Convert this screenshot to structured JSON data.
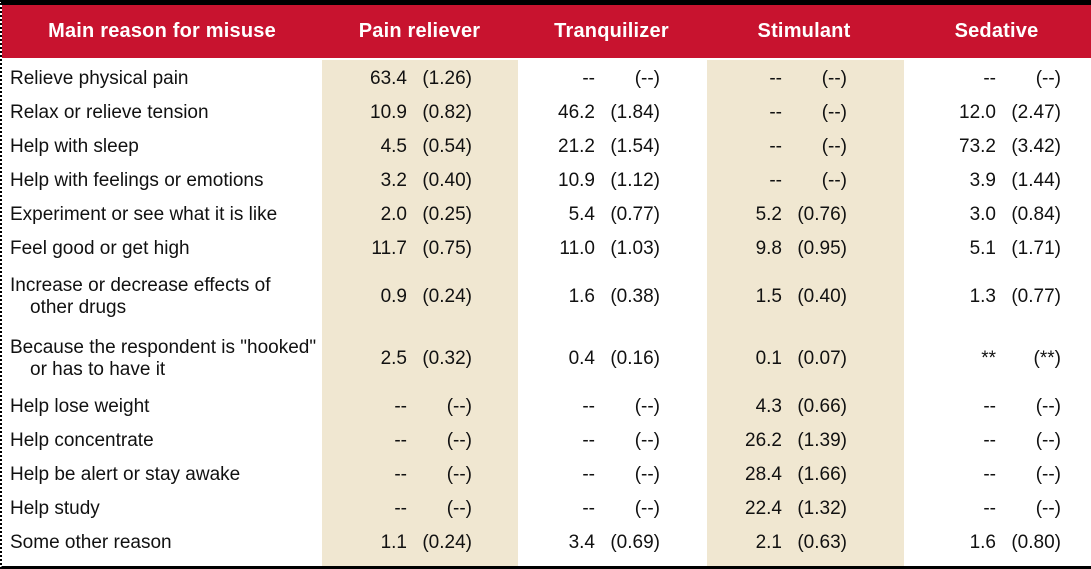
{
  "colors": {
    "header_bg": "#C8132F",
    "header_text": "#FFFFFF",
    "band_bg": "#F0E7D1",
    "body_text": "#111111",
    "border": "#000000"
  },
  "table": {
    "header": {
      "reason_label": "Main reason for misuse",
      "col_pain": "Pain reliever",
      "col_tranq": "Tranquilizer",
      "col_stim": "Stimulant",
      "col_sed": "Sedative"
    },
    "rows": [
      {
        "reason": "Relieve physical pain",
        "cells": [
          {
            "est": "63.4",
            "se": "(1.26)"
          },
          {
            "est": "--",
            "se": "(--)"
          },
          {
            "est": "--",
            "se": "(--)"
          },
          {
            "est": "--",
            "se": "(--)"
          }
        ]
      },
      {
        "reason": "Relax or relieve tension",
        "cells": [
          {
            "est": "10.9",
            "se": "(0.82)"
          },
          {
            "est": "46.2",
            "se": "(1.84)"
          },
          {
            "est": "--",
            "se": "(--)"
          },
          {
            "est": "12.0",
            "se": "(2.47)"
          }
        ]
      },
      {
        "reason": "Help with sleep",
        "cells": [
          {
            "est": "4.5",
            "se": "(0.54)"
          },
          {
            "est": "21.2",
            "se": "(1.54)"
          },
          {
            "est": "--",
            "se": "(--)"
          },
          {
            "est": "73.2",
            "se": "(3.42)"
          }
        ]
      },
      {
        "reason": "Help with feelings or emotions",
        "cells": [
          {
            "est": "3.2",
            "se": "(0.40)"
          },
          {
            "est": "10.9",
            "se": "(1.12)"
          },
          {
            "est": "--",
            "se": "(--)"
          },
          {
            "est": "3.9",
            "se": "(1.44)"
          }
        ]
      },
      {
        "reason": "Experiment or see what it is like",
        "cells": [
          {
            "est": "2.0",
            "se": "(0.25)"
          },
          {
            "est": "5.4",
            "se": "(0.77)"
          },
          {
            "est": "5.2",
            "se": "(0.76)"
          },
          {
            "est": "3.0",
            "se": "(0.84)"
          }
        ]
      },
      {
        "reason": "Feel good or get high",
        "cells": [
          {
            "est": "11.7",
            "se": "(0.75)"
          },
          {
            "est": "11.0",
            "se": "(1.03)"
          },
          {
            "est": "9.8",
            "se": "(0.95)"
          },
          {
            "est": "5.1",
            "se": "(1.71)"
          }
        ]
      },
      {
        "reason": "Increase or decrease effects of other drugs",
        "cells": [
          {
            "est": "0.9",
            "se": "(0.24)"
          },
          {
            "est": "1.6",
            "se": "(0.38)"
          },
          {
            "est": "1.5",
            "se": "(0.40)"
          },
          {
            "est": "1.3",
            "se": "(0.77)"
          }
        ]
      },
      {
        "reason": "Because the respondent is \"hooked\" or has to have it",
        "cells": [
          {
            "est": "2.5",
            "se": "(0.32)"
          },
          {
            "est": "0.4",
            "se": "(0.16)"
          },
          {
            "est": "0.1",
            "se": "(0.07)"
          },
          {
            "est": "**",
            "se": "(**)"
          }
        ]
      },
      {
        "reason": "Help lose weight",
        "cells": [
          {
            "est": "--",
            "se": "(--)"
          },
          {
            "est": "--",
            "se": "(--)"
          },
          {
            "est": "4.3",
            "se": "(0.66)"
          },
          {
            "est": "--",
            "se": "(--)"
          }
        ]
      },
      {
        "reason": "Help concentrate",
        "cells": [
          {
            "est": "--",
            "se": "(--)"
          },
          {
            "est": "--",
            "se": "(--)"
          },
          {
            "est": "26.2",
            "se": "(1.39)"
          },
          {
            "est": "--",
            "se": "(--)"
          }
        ]
      },
      {
        "reason": "Help be alert or stay awake",
        "cells": [
          {
            "est": "--",
            "se": "(--)"
          },
          {
            "est": "--",
            "se": "(--)"
          },
          {
            "est": "28.4",
            "se": "(1.66)"
          },
          {
            "est": "--",
            "se": "(--)"
          }
        ]
      },
      {
        "reason": "Help study",
        "cells": [
          {
            "est": "--",
            "se": "(--)"
          },
          {
            "est": "--",
            "se": "(--)"
          },
          {
            "est": "22.4",
            "se": "(1.32)"
          },
          {
            "est": "--",
            "se": "(--)"
          }
        ]
      },
      {
        "reason": "Some other reason",
        "cells": [
          {
            "est": "1.1",
            "se": "(0.24)"
          },
          {
            "est": "3.4",
            "se": "(0.69)"
          },
          {
            "est": "2.1",
            "se": "(0.63)"
          },
          {
            "est": "1.6",
            "se": "(0.80)"
          }
        ]
      }
    ]
  }
}
